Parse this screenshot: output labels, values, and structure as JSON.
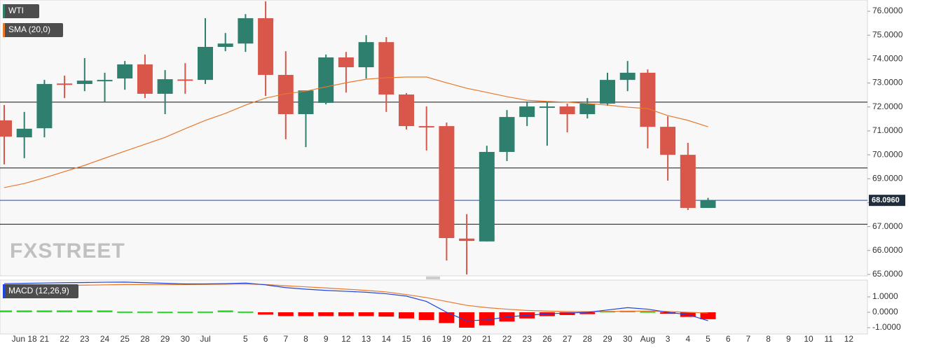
{
  "chart_data": [
    {
      "type": "candlestick",
      "categories": [
        null,
        "Jun 18",
        "21",
        "22",
        "23",
        "24",
        "25",
        "28",
        "29",
        "30",
        "Jul",
        null,
        "5",
        "6",
        "7",
        "8",
        "9",
        "12",
        "13",
        "14",
        "15",
        "16",
        "19",
        "20",
        "21",
        "22",
        "23",
        "26",
        "27",
        "28",
        "29",
        "30",
        "Aug",
        "3",
        "4",
        "5",
        "6",
        "7",
        "8",
        "9",
        "10",
        "11",
        "12"
      ],
      "series": [
        {
          "name": "WTI",
          "color": "#2f7f6e",
          "down_color": "#d9574a",
          "open": [
            71.44,
            70.73,
            71.11,
            72.98,
            72.96,
            73.1,
            73.19,
            73.78,
            72.55,
            73.15,
            73.13,
            74.51,
            74.65,
            75.71,
            73.34,
            71.7,
            72.17,
            74.07,
            73.66,
            74.71,
            72.52,
            71.2,
            71.2,
            66.5,
            66.38,
            70.12,
            71.58,
            71.99,
            72.02,
            71.7,
            72.14,
            73.13,
            73.43,
            71.17,
            70.0,
            67.78,
            null,
            null,
            null,
            null,
            null,
            null,
            null
          ],
          "high": [
            72.08,
            71.79,
            73.13,
            73.31,
            74.04,
            73.43,
            73.92,
            74.19,
            73.54,
            73.83,
            75.71,
            75.09,
            75.88,
            76.41,
            74.33,
            72.69,
            74.19,
            74.3,
            75.0,
            74.92,
            72.58,
            72.02,
            71.35,
            67.52,
            70.38,
            71.87,
            72.23,
            72.23,
            72.14,
            72.37,
            73.43,
            73.92,
            73.57,
            71.61,
            70.5,
            68.2,
            null,
            null,
            null,
            null,
            null,
            null,
            null
          ],
          "low": [
            69.6,
            69.86,
            70.73,
            72.37,
            72.66,
            72.2,
            72.72,
            72.37,
            71.7,
            72.55,
            72.96,
            74.33,
            74.3,
            72.46,
            70.65,
            70.32,
            72.11,
            72.6,
            73.19,
            71.79,
            71.06,
            70.18,
            65.58,
            65.0,
            66.38,
            69.74,
            71.2,
            70.38,
            70.94,
            71.52,
            72.05,
            72.66,
            70.27,
            68.92,
            67.69,
            67.78,
            null,
            null,
            null,
            null,
            null,
            null,
            null
          ],
          "close": [
            70.76,
            71.09,
            72.96,
            72.95,
            73.1,
            73.13,
            73.78,
            72.55,
            73.16,
            73.11,
            74.51,
            74.65,
            75.71,
            73.34,
            71.7,
            72.69,
            74.07,
            73.66,
            74.71,
            72.52,
            71.2,
            71.18,
            66.52,
            66.4,
            70.12,
            71.58,
            72.02,
            72.02,
            71.7,
            72.14,
            73.13,
            73.43,
            71.17,
            70.0,
            67.78,
            68.096,
            null,
            null,
            null,
            null,
            null,
            null,
            null
          ]
        },
        {
          "name": "SMA (20,0)",
          "color": "#e8792b",
          "values": [
            68.63,
            68.8,
            69.04,
            69.3,
            69.56,
            69.86,
            70.15,
            70.44,
            70.73,
            71.09,
            71.44,
            71.73,
            72.08,
            72.37,
            72.55,
            72.66,
            72.84,
            73.01,
            73.16,
            73.22,
            73.25,
            73.25,
            73.01,
            72.78,
            72.61,
            72.43,
            72.28,
            72.23,
            72.2,
            72.14,
            72.08,
            71.99,
            71.93,
            71.64,
            71.44,
            71.17,
            null,
            null,
            null,
            null,
            null,
            null,
            null
          ]
        }
      ],
      "hlines": [
        72.2,
        69.45,
        67.1
      ],
      "last_price": {
        "value": 68.096,
        "label": "68.0960",
        "color": "#2b4a8a"
      },
      "watermark": "FXSTREET",
      "ylim": [
        64.94,
        76.47
      ],
      "yticks": [
        {
          "value": 76,
          "label": "76.0000"
        },
        {
          "value": 75,
          "label": "75.0000"
        },
        {
          "value": 74,
          "label": "74.0000"
        },
        {
          "value": 73,
          "label": "73.0000"
        },
        {
          "value": 72,
          "label": "72.0000"
        },
        {
          "value": 71,
          "label": "71.0000"
        },
        {
          "value": 70,
          "label": "70.0000"
        },
        {
          "value": 69,
          "label": "69.0000"
        },
        {
          "value": 68,
          "label": "68.0000"
        },
        {
          "value": 67,
          "label": "67.0000"
        },
        {
          "value": 66,
          "label": "66.0000"
        },
        {
          "value": 65,
          "label": "65.0000"
        }
      ]
    },
    {
      "type": "macd",
      "title": "MACD (12,26,9)",
      "macd": {
        "color": "#2244dd",
        "values": [
          1.86,
          1.88,
          1.9,
          1.92,
          1.93,
          1.95,
          1.96,
          1.92,
          1.88,
          1.84,
          1.84,
          1.86,
          1.9,
          1.78,
          1.6,
          1.5,
          1.42,
          1.36,
          1.3,
          1.2,
          1.05,
          0.7,
          0.0,
          -0.55,
          -0.5,
          -0.3,
          -0.2,
          -0.1,
          -0.05,
          0.0,
          0.15,
          0.3,
          0.2,
          0.0,
          -0.15,
          -0.55,
          null,
          null,
          null,
          null,
          null,
          null,
          null
        ]
      },
      "signal": {
        "color": "#e8792b",
        "values": [
          1.68,
          1.7,
          1.72,
          1.74,
          1.76,
          1.78,
          1.8,
          1.8,
          1.8,
          1.8,
          1.81,
          1.82,
          1.84,
          1.8,
          1.72,
          1.65,
          1.58,
          1.5,
          1.42,
          1.32,
          1.15,
          0.95,
          0.7,
          0.45,
          0.3,
          0.2,
          0.12,
          0.08,
          0.05,
          0.04,
          0.05,
          0.07,
          0.08,
          0.05,
          0.0,
          -0.05,
          null,
          null,
          null,
          null,
          null,
          null,
          null
        ]
      },
      "histogram": {
        "up_color": "#22dd22",
        "down_color": "#ff0000",
        "values": [
          0.12,
          0.12,
          0.12,
          0.12,
          0.12,
          0.12,
          0.05,
          0.05,
          0.04,
          0.04,
          0.05,
          0.12,
          0.05,
          -0.15,
          -0.25,
          -0.25,
          -0.25,
          -0.25,
          -0.25,
          -0.28,
          -0.4,
          -0.5,
          -0.7,
          -1.0,
          -0.85,
          -0.6,
          -0.4,
          -0.25,
          -0.18,
          -0.12,
          0.08,
          0.1,
          0.06,
          -0.1,
          -0.3,
          -0.45,
          null,
          null,
          null,
          null,
          null,
          null,
          null
        ]
      },
      "ylim": [
        -1.41,
        2.09
      ],
      "yticks": [
        {
          "value": 1,
          "label": "1.0000"
        },
        {
          "value": 0,
          "label": "0.0000"
        },
        {
          "value": -1,
          "label": "-1.0000"
        }
      ]
    }
  ]
}
